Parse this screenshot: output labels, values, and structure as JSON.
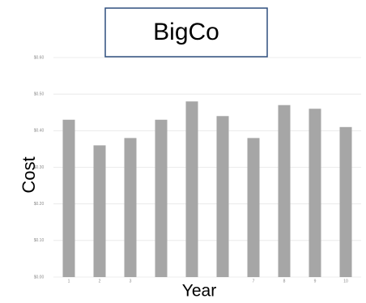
{
  "chart_data": {
    "type": "bar",
    "title": "BigCo",
    "ylabel": "Cost",
    "xlabel": "Year",
    "categories": [
      1,
      2,
      3,
      null,
      null,
      null,
      7,
      8,
      9,
      10
    ],
    "values": [
      0.43,
      0.36,
      0.38,
      0.43,
      0.48,
      0.44,
      0.38,
      0.47,
      0.46,
      0.41
    ],
    "color": "#a6a6a6",
    "ylim": [
      0,
      0.6
    ],
    "yticks": [
      {
        "value": 0,
        "label": "$0.00"
      },
      {
        "value": 0.1,
        "label": "$0.10"
      },
      {
        "value": 0.2,
        "label": "$0.20"
      },
      {
        "value": 0.3,
        "label": "$0.30"
      },
      {
        "value": 0.4,
        "label": "$0.40"
      },
      {
        "value": 0.5,
        "label": "$0.50"
      },
      {
        "value": 0.6,
        "label": "$0.60"
      }
    ],
    "grid": true
  }
}
